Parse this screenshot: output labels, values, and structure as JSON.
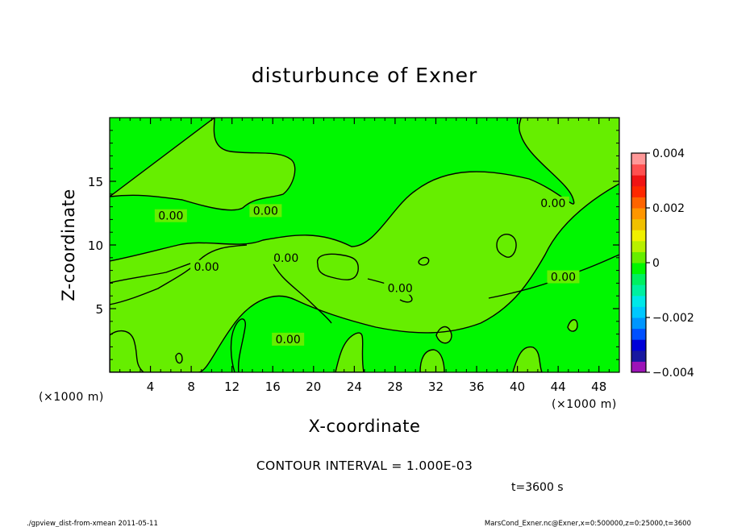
{
  "chart_data": {
    "type": "heatmap",
    "title": "disturbunce of Exner",
    "xlabel": "X-coordinate",
    "ylabel": "Z-coordinate",
    "x_unit_note": "(×1000 m)",
    "y_unit_note": "(×1000 m)",
    "xlim": [
      0,
      50
    ],
    "ylim": [
      0,
      20
    ],
    "x_ticks": [
      4,
      8,
      12,
      16,
      20,
      24,
      28,
      32,
      36,
      40,
      44,
      48
    ],
    "x_tick_labels": [
      "4",
      "8",
      "12",
      "16",
      "20",
      "24",
      "28",
      "32",
      "36",
      "40",
      "44",
      "48"
    ],
    "y_ticks": [
      5,
      10,
      15
    ],
    "y_tick_labels": [
      "5",
      "10",
      "15"
    ],
    "contour_interval_text": "CONTOUR INTERVAL = 1.000E-03",
    "time_text": "t=3600 s",
    "background_color": "#00f700",
    "positive_fill_color": "#66ee00",
    "colorbar": {
      "range": [
        -0.004,
        0.004
      ],
      "tick_values": [
        0.004,
        0.002,
        0,
        -0.002,
        -0.004
      ],
      "tick_labels": [
        "0.004",
        "0.002",
        "0",
        "−0.002",
        "−0.004"
      ],
      "colors": [
        "#9d14b8",
        "#1818a0",
        "#0000d8",
        "#0050ff",
        "#0096ff",
        "#00c8ff",
        "#00e8e8",
        "#00f0a0",
        "#00f060",
        "#00f700",
        "#66ee00",
        "#b8f000",
        "#f0f000",
        "#f0c000",
        "#ff9600",
        "#ff6400",
        "#ff2800",
        "#f01414",
        "#ff5050",
        "#ff9898"
      ]
    },
    "contour_labels": [
      {
        "text": "0.00",
        "x": 6.0,
        "z": 12.3
      },
      {
        "text": "0.00",
        "x": 15.3,
        "z": 12.7
      },
      {
        "text": "0.00",
        "x": 43.5,
        "z": 13.3
      },
      {
        "text": "0.00",
        "x": 9.5,
        "z": 8.3
      },
      {
        "text": "0.00",
        "x": 17.3,
        "z": 9.0
      },
      {
        "text": "0.00",
        "x": 28.5,
        "z": 6.6
      },
      {
        "text": "0.00",
        "x": 44.5,
        "z": 7.5
      },
      {
        "text": "0.00",
        "x": 17.5,
        "z": 2.6
      }
    ]
  },
  "footer": {
    "left": "./gpview_dist-from-xmean  2011-05-11",
    "right": "MarsCond_Exner.nc@Exner,x=0:500000,z=0:25000,t=3600"
  }
}
